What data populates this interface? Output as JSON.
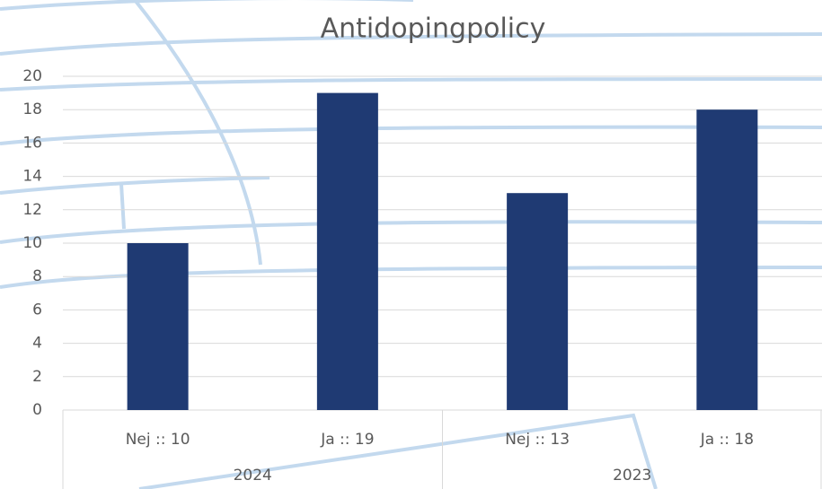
{
  "chart_data": {
    "type": "bar",
    "title": "Antidopingpolicy",
    "categories": [
      "Nej :: 10",
      "Ja :: 19",
      "Nej :: 13",
      "Ja :: 18"
    ],
    "groups": [
      "2024",
      "2023"
    ],
    "values": [
      10,
      19,
      13,
      18
    ],
    "color": "#1f3a73",
    "ylim": [
      0,
      20
    ],
    "yticks": [
      0,
      2,
      4,
      6,
      8,
      10,
      12,
      14,
      16,
      18,
      20
    ],
    "grid": true
  }
}
